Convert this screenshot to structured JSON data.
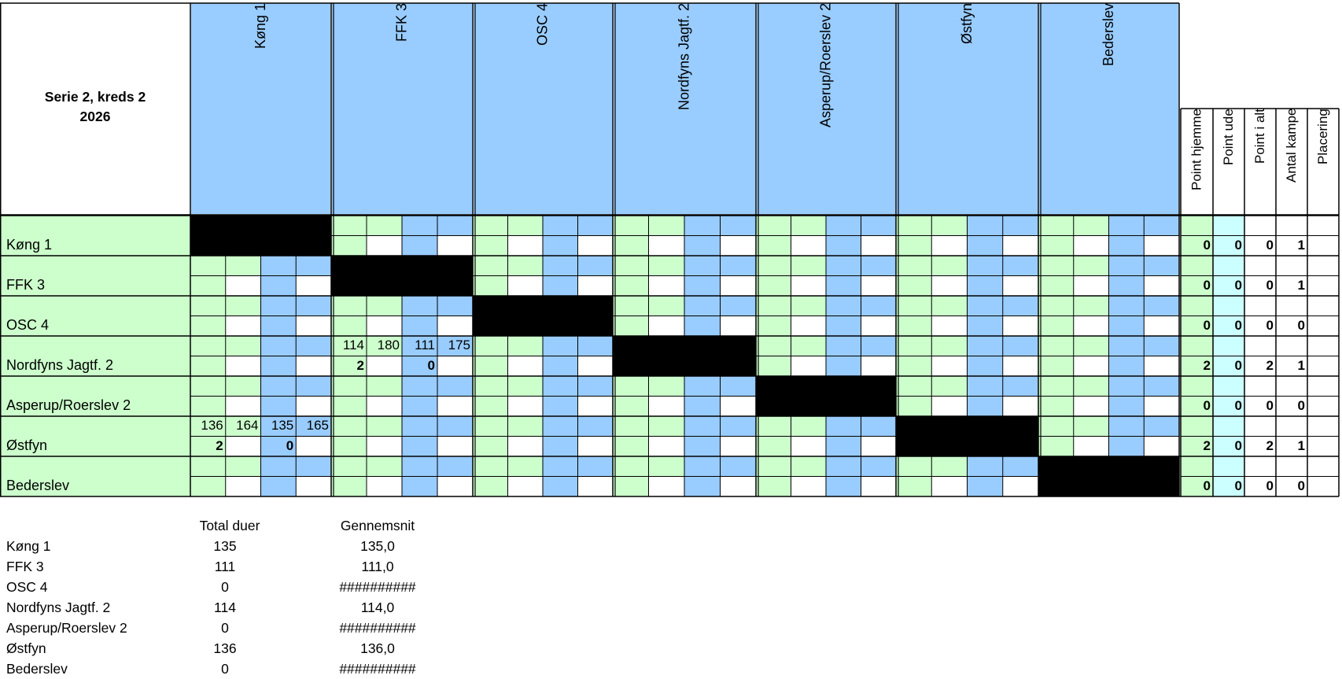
{
  "title": {
    "line1": "Serie 2, kreds 2",
    "line2": "2026"
  },
  "teams": [
    "Køng 1",
    "FFK 3",
    "OSC 4",
    "Nordfyns Jagtf. 2",
    "Asperup/Roerslev 2",
    "Østfyn",
    "Bederslev"
  ],
  "stat_headers": [
    "Point hjemme",
    "Point ude",
    "Point i alt",
    "Antal kampe",
    "Placering"
  ],
  "standings": [
    {
      "team": "Køng 1",
      "hjemme": "0",
      "ude": "0",
      "i_alt": "0",
      "kampe": "1",
      "placering": ""
    },
    {
      "team": "FFK 3",
      "hjemme": "0",
      "ude": "0",
      "i_alt": "0",
      "kampe": "1",
      "placering": ""
    },
    {
      "team": "OSC 4",
      "hjemme": "0",
      "ude": "0",
      "i_alt": "0",
      "kampe": "0",
      "placering": ""
    },
    {
      "team": "Nordfyns Jagtf. 2",
      "hjemme": "2",
      "ude": "0",
      "i_alt": "2",
      "kampe": "1",
      "placering": ""
    },
    {
      "team": "Asperup/Roerslev 2",
      "hjemme": "0",
      "ude": "0",
      "i_alt": "0",
      "kampe": "0",
      "placering": ""
    },
    {
      "team": "Østfyn",
      "hjemme": "2",
      "ude": "0",
      "i_alt": "2",
      "kampe": "1",
      "placering": ""
    },
    {
      "team": "Bederslev",
      "hjemme": "0",
      "ude": "0",
      "i_alt": "0",
      "kampe": "0",
      "placering": ""
    }
  ],
  "match_entries": [
    {
      "row": 3,
      "col": 1,
      "scores": [
        "114",
        "180",
        "111",
        "175"
      ],
      "points": [
        "2",
        "",
        "0",
        ""
      ]
    },
    {
      "row": 5,
      "col": 0,
      "scores": [
        "136",
        "164",
        "135",
        "165"
      ],
      "points": [
        "2",
        "",
        "0",
        ""
      ]
    }
  ],
  "summary": {
    "header_total": "Total duer",
    "header_avg": "Gennemsnit",
    "rows": [
      {
        "team": "Køng 1",
        "total": "135",
        "avg": "135,0"
      },
      {
        "team": "FFK 3",
        "total": "111",
        "avg": "111,0"
      },
      {
        "team": "OSC 4",
        "total": "0",
        "avg": "##########"
      },
      {
        "team": "Nordfyns Jagtf. 2",
        "total": "114",
        "avg": "114,0"
      },
      {
        "team": "Asperup/Roerslev 2",
        "total": "0",
        "avg": "##########"
      },
      {
        "team": "Østfyn",
        "total": "136",
        "avg": "136,0"
      },
      {
        "team": "Bederslev",
        "total": "0",
        "avg": "##########"
      }
    ]
  },
  "colors": {
    "header_blue": "#99CCFF",
    "green": "#CCFFCC",
    "blue": "#99CCFF",
    "cyan": "#CCFFFF",
    "black": "#000000",
    "white": "#FFFFFF"
  }
}
